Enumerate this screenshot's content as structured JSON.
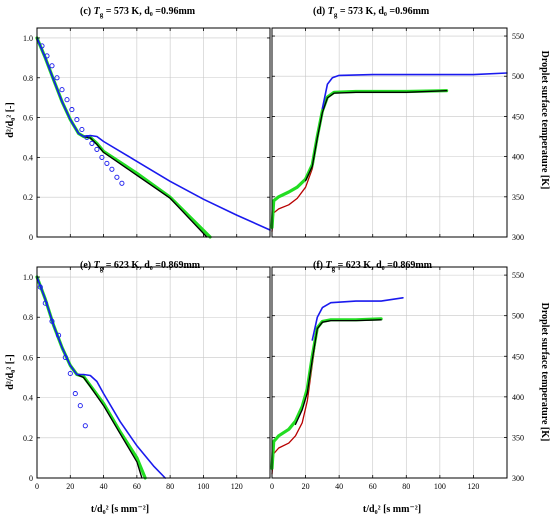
{
  "figure": {
    "y_label_left": "d²/d₀² [-]",
    "y_label_right": "Droplet surface temperature [K]",
    "x_label": "t/d₀² [s mm⁻²]"
  },
  "chart_data": [
    {
      "id": "c",
      "type": "line",
      "title": "(c) T_g = 573 K, d₀ =0.96mm",
      "title_parts": {
        "prefix": "(c) ",
        "T": "T",
        "sub": "g",
        "rest": " = 573 K, d₀ =0.96mm"
      },
      "xlim": [
        0,
        140
      ],
      "ylim": [
        0,
        1.05
      ],
      "xticks": [
        0,
        20,
        40,
        60,
        80,
        100,
        120
      ],
      "yticks": [
        0,
        0.2,
        0.4,
        0.6,
        0.8,
        1.0
      ],
      "ytick_labels": [
        "0",
        "0.2",
        "0.4",
        "0.6",
        "0.8",
        "1.0"
      ],
      "grid": true,
      "series": [
        {
          "color": "#22dd22",
          "width": 3.2,
          "points": [
            [
              0,
              1.0
            ],
            [
              5,
              0.9
            ],
            [
              10,
              0.79
            ],
            [
              15,
              0.68
            ],
            [
              20,
              0.59
            ],
            [
              25,
              0.52
            ],
            [
              28,
              0.505
            ],
            [
              32,
              0.5
            ],
            [
              36,
              0.47
            ],
            [
              40,
              0.43
            ],
            [
              60,
              0.32
            ],
            [
              80,
              0.2
            ],
            [
              104,
              0.0
            ]
          ]
        },
        {
          "color": "#000000",
          "width": 1.3,
          "points": [
            [
              0,
              1.0
            ],
            [
              5,
              0.9
            ],
            [
              10,
              0.79
            ],
            [
              15,
              0.68
            ],
            [
              20,
              0.59
            ],
            [
              25,
              0.52
            ],
            [
              28,
              0.505
            ],
            [
              32,
              0.498
            ],
            [
              36,
              0.465
            ],
            [
              40,
              0.425
            ],
            [
              60,
              0.31
            ],
            [
              80,
              0.195
            ],
            [
              102,
              0.0
            ]
          ]
        },
        {
          "color": "#1a1aee",
          "width": 1.6,
          "points": [
            [
              0,
              1.0
            ],
            [
              5,
              0.9
            ],
            [
              10,
              0.79
            ],
            [
              15,
              0.68
            ],
            [
              20,
              0.59
            ],
            [
              25,
              0.52
            ],
            [
              28,
              0.505
            ],
            [
              32,
              0.51
            ],
            [
              36,
              0.505
            ],
            [
              40,
              0.48
            ],
            [
              60,
              0.38
            ],
            [
              80,
              0.28
            ],
            [
              100,
              0.19
            ],
            [
              120,
              0.11
            ],
            [
              140,
              0.035
            ]
          ]
        },
        {
          "color": "#1a1aee",
          "markers": true,
          "points": [
            [
              3,
              0.96
            ],
            [
              6,
              0.91
            ],
            [
              9,
              0.86
            ],
            [
              12,
              0.8
            ],
            [
              15,
              0.74
            ],
            [
              18,
              0.69
            ],
            [
              21,
              0.64
            ],
            [
              24,
              0.59
            ],
            [
              27,
              0.54
            ],
            [
              30,
              0.5
            ],
            [
              33,
              0.47
            ],
            [
              36,
              0.44
            ],
            [
              39,
              0.4
            ],
            [
              42,
              0.37
            ],
            [
              45,
              0.34
            ],
            [
              48,
              0.3
            ],
            [
              51,
              0.27
            ]
          ]
        }
      ]
    },
    {
      "id": "d",
      "type": "line",
      "title": "(d) T_g = 573 K, d₀ =0.96mm",
      "title_parts": {
        "prefix": "(d) ",
        "T": "T",
        "sub": "g",
        "rest": " = 573 K, d₀ =0.96mm"
      },
      "xlim": [
        0,
        140
      ],
      "ylim": [
        300,
        560
      ],
      "yticks": [
        300,
        350,
        400,
        450,
        500,
        550
      ],
      "ytick_labels": [
        "300",
        "350",
        "400",
        "450",
        "500",
        "550"
      ],
      "grid": true,
      "series": [
        {
          "color": "#b80000",
          "width": 1.3,
          "points": [
            [
              0,
              307
            ],
            [
              1,
              330
            ],
            [
              4,
              335
            ],
            [
              10,
              340
            ],
            [
              15,
              348
            ],
            [
              20,
              362
            ],
            [
              24,
              385
            ],
            [
              27,
              420
            ],
            [
              30,
              455
            ],
            [
              33,
              474
            ],
            [
              37,
              480
            ],
            [
              50,
              481
            ],
            [
              80,
              481
            ],
            [
              104,
              483
            ]
          ]
        },
        {
          "color": "#22dd22",
          "width": 3.2,
          "points": [
            [
              0,
              312
            ],
            [
              1,
              345
            ],
            [
              4,
              350
            ],
            [
              10,
              356
            ],
            [
              15,
              362
            ],
            [
              20,
              372
            ],
            [
              24,
              390
            ],
            [
              27,
              425
            ],
            [
              30,
              457
            ],
            [
              33,
              474
            ],
            [
              37,
              480
            ],
            [
              50,
              481
            ],
            [
              80,
              481
            ],
            [
              104,
              482
            ]
          ]
        },
        {
          "color": "#000000",
          "width": 1.3,
          "points": [
            [
              20,
              370
            ],
            [
              24,
              388
            ],
            [
              27,
              423
            ],
            [
              30,
              455
            ],
            [
              33,
              473
            ],
            [
              37,
              479
            ],
            [
              50,
              480
            ],
            [
              80,
              480
            ],
            [
              104,
              482
            ]
          ]
        },
        {
          "color": "#1a1aee",
          "width": 1.6,
          "points": [
            [
              30,
              460
            ],
            [
              33,
              490
            ],
            [
              36,
              498
            ],
            [
              40,
              501
            ],
            [
              60,
              502
            ],
            [
              80,
              502
            ],
            [
              100,
              502
            ],
            [
              120,
              502
            ],
            [
              140,
              504
            ]
          ]
        }
      ]
    },
    {
      "id": "e",
      "type": "line",
      "title": "(e) T_g = 623 K, d₀ =0.869mm",
      "title_parts": {
        "prefix": "(e) ",
        "T": "T",
        "sub": "g",
        "rest": " = 623 K, d₀ =0.869mm"
      },
      "xlim": [
        0,
        140
      ],
      "ylim": [
        0,
        1.05
      ],
      "xticks": [
        0,
        20,
        40,
        60,
        80,
        100,
        120
      ],
      "yticks": [
        0,
        0.2,
        0.4,
        0.6,
        0.8,
        1.0
      ],
      "ytick_labels": [
        "0",
        "0.2",
        "0.4",
        "0.6",
        "0.8",
        "1.0"
      ],
      "grid": true,
      "series": [
        {
          "color": "#22dd22",
          "width": 3.2,
          "points": [
            [
              0,
              1.0
            ],
            [
              5,
              0.89
            ],
            [
              10,
              0.76
            ],
            [
              15,
              0.65
            ],
            [
              20,
              0.56
            ],
            [
              24,
              0.515
            ],
            [
              28,
              0.505
            ],
            [
              32,
              0.46
            ],
            [
              40,
              0.37
            ],
            [
              50,
              0.23
            ],
            [
              60,
              0.1
            ],
            [
              65,
              0.0
            ]
          ]
        },
        {
          "color": "#000000",
          "width": 1.3,
          "points": [
            [
              0,
              1.0
            ],
            [
              5,
              0.89
            ],
            [
              10,
              0.76
            ],
            [
              15,
              0.65
            ],
            [
              20,
              0.56
            ],
            [
              24,
              0.515
            ],
            [
              28,
              0.5
            ],
            [
              32,
              0.455
            ],
            [
              40,
              0.36
            ],
            [
              50,
              0.22
            ],
            [
              60,
              0.08
            ],
            [
              63,
              0.0
            ]
          ]
        },
        {
          "color": "#1a1aee",
          "width": 1.6,
          "points": [
            [
              0,
              1.0
            ],
            [
              5,
              0.89
            ],
            [
              10,
              0.76
            ],
            [
              15,
              0.65
            ],
            [
              20,
              0.56
            ],
            [
              24,
              0.515
            ],
            [
              28,
              0.515
            ],
            [
              32,
              0.51
            ],
            [
              36,
              0.48
            ],
            [
              40,
              0.42
            ],
            [
              50,
              0.28
            ],
            [
              60,
              0.16
            ],
            [
              70,
              0.06
            ],
            [
              77,
              0.0
            ]
          ]
        },
        {
          "color": "#1a1aee",
          "markers": true,
          "points": [
            [
              2,
              0.95
            ],
            [
              5,
              0.87
            ],
            [
              9,
              0.78
            ],
            [
              13,
              0.71
            ],
            [
              17,
              0.6
            ],
            [
              20,
              0.52
            ],
            [
              23,
              0.42
            ],
            [
              26,
              0.36
            ],
            [
              29,
              0.26
            ]
          ]
        }
      ]
    },
    {
      "id": "f",
      "type": "line",
      "title": "(f) T_g = 623 K, d₀ =0.869mm",
      "title_parts": {
        "prefix": "(f) ",
        "T": "T",
        "sub": "g",
        "rest": " = 623 K, d₀ =0.869mm"
      },
      "xlim": [
        0,
        140
      ],
      "ylim": [
        300,
        560
      ],
      "xticks": [
        0,
        20,
        40,
        60,
        80,
        100,
        120
      ],
      "yticks": [
        300,
        350,
        400,
        450,
        500,
        550
      ],
      "ytick_labels": [
        "300",
        "350",
        "400",
        "450",
        "500",
        "550"
      ],
      "grid": true,
      "series": [
        {
          "color": "#b80000",
          "width": 1.3,
          "points": [
            [
              0,
              305
            ],
            [
              1,
              330
            ],
            [
              4,
              337
            ],
            [
              10,
              343
            ],
            [
              14,
              352
            ],
            [
              18,
              368
            ],
            [
              21,
              395
            ],
            [
              24,
              440
            ],
            [
              27,
              483
            ],
            [
              30,
              493
            ],
            [
              35,
              495
            ],
            [
              50,
              495
            ],
            [
              65,
              497
            ]
          ]
        },
        {
          "color": "#22dd22",
          "width": 3.2,
          "points": [
            [
              0,
              312
            ],
            [
              1,
              345
            ],
            [
              4,
              352
            ],
            [
              10,
              360
            ],
            [
              14,
              370
            ],
            [
              18,
              388
            ],
            [
              21,
              410
            ],
            [
              24,
              450
            ],
            [
              27,
              485
            ],
            [
              30,
              493
            ],
            [
              35,
              495
            ],
            [
              50,
              495
            ],
            [
              65,
              496
            ]
          ]
        },
        {
          "color": "#000000",
          "width": 1.3,
          "points": [
            [
              14,
              366
            ],
            [
              18,
              384
            ],
            [
              21,
              405
            ],
            [
              24,
              446
            ],
            [
              27,
              484
            ],
            [
              30,
              492
            ],
            [
              35,
              494
            ],
            [
              50,
              494
            ],
            [
              65,
              495
            ]
          ]
        },
        {
          "color": "#1a1aee",
          "width": 1.6,
          "points": [
            [
              24,
              470
            ],
            [
              27,
              498
            ],
            [
              30,
              510
            ],
            [
              35,
              516
            ],
            [
              50,
              518
            ],
            [
              65,
              518
            ],
            [
              78,
              522
            ]
          ]
        }
      ]
    }
  ]
}
